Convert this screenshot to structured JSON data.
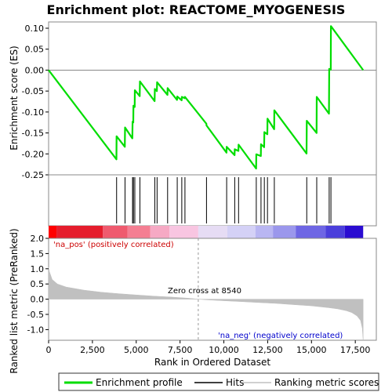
{
  "chart_data": {
    "type": "line",
    "title": "Enrichment plot: REACTOME_MYOGENESIS",
    "es_panel": {
      "ylabel": "Enrichment score (ES)",
      "ylim": [
        -0.25,
        0.115
      ],
      "yticks": [
        0.1,
        0.05,
        0.0,
        -0.05,
        -0.1,
        -0.15,
        -0.2,
        -0.25
      ],
      "ytick_labels": [
        "0.10",
        "0.05",
        "0.00",
        "-0.05",
        "-0.10",
        "-0.15",
        "-0.20",
        "-0.25"
      ],
      "series": [
        {
          "name": "Enrichment profile",
          "color": "#00dd00",
          "x": [
            0,
            3870,
            3880,
            4350,
            4360,
            4780,
            4790,
            4830,
            4840,
            4910,
            4920,
            5200,
            5210,
            6050,
            6060,
            6180,
            6190,
            6780,
            6790,
            7330,
            7340,
            7590,
            7600,
            7770,
            7780,
            9000,
            9010,
            10150,
            10160,
            10610,
            10620,
            10830,
            10840,
            11840,
            11850,
            12110,
            12120,
            12300,
            12310,
            12480,
            12490,
            12870,
            12880,
            14720,
            14730,
            15290,
            15300,
            16000,
            16010,
            16100,
            16110,
            17950
          ],
          "y": [
            0.0,
            -0.213,
            -0.158,
            -0.183,
            -0.137,
            -0.163,
            -0.123,
            -0.125,
            -0.085,
            -0.088,
            -0.048,
            -0.062,
            -0.027,
            -0.074,
            -0.045,
            -0.05,
            -0.029,
            -0.059,
            -0.043,
            -0.071,
            -0.063,
            -0.072,
            -0.064,
            -0.067,
            -0.064,
            -0.128,
            -0.132,
            -0.197,
            -0.183,
            -0.203,
            -0.189,
            -0.193,
            -0.178,
            -0.235,
            -0.201,
            -0.205,
            -0.177,
            -0.184,
            -0.148,
            -0.153,
            -0.116,
            -0.141,
            -0.096,
            -0.199,
            -0.121,
            -0.15,
            -0.064,
            -0.104,
            0.003,
            0.001,
            0.105,
            0.0
          ]
        }
      ]
    },
    "hits": {
      "name": "Hits",
      "x": [
        3880,
        4360,
        4790,
        4840,
        4920,
        5210,
        6060,
        6190,
        6790,
        7340,
        7600,
        7780,
        9010,
        10160,
        10620,
        10840,
        11850,
        12120,
        12310,
        12490,
        12880,
        14730,
        15300,
        16010,
        16110
      ]
    },
    "rank_panel": {
      "ylabel": "Ranked list metric (PreRanked)",
      "ylim": [
        -1.35,
        2.0
      ],
      "yticks": [
        2.0,
        1.5,
        1.0,
        0.5,
        0.0,
        -0.5,
        -1.0
      ],
      "ytick_labels": [
        "2.0",
        "1.5",
        "1.0",
        "0.5",
        "0.0",
        "-0.5",
        "-1.0"
      ],
      "series": [
        {
          "name": "Ranking metric scores",
          "color": "#c0c0c0",
          "x": [
            0,
            50,
            200,
            500,
            1000,
            2000,
            3000,
            4000,
            5000,
            6000,
            7000,
            8000,
            8540,
            9000,
            10000,
            11000,
            12000,
            13000,
            14000,
            15000,
            16000,
            16500,
            17000,
            17300,
            17600,
            17800,
            17900,
            17950
          ],
          "y": [
            1.05,
            0.9,
            0.65,
            0.5,
            0.4,
            0.3,
            0.23,
            0.18,
            0.14,
            0.1,
            0.07,
            0.03,
            0.0,
            -0.02,
            -0.05,
            -0.08,
            -0.11,
            -0.14,
            -0.18,
            -0.22,
            -0.28,
            -0.32,
            -0.38,
            -0.44,
            -0.55,
            -0.7,
            -0.95,
            -1.35
          ]
        }
      ],
      "pos_label": "'na_pos' (positively correlated)",
      "neg_label": "'na_neg' (negatively correlated)",
      "zero_cross_label": "Zero cross at 8540",
      "zero_cross": 8540
    },
    "xaxis": {
      "xlabel": "Rank in Ordered Dataset",
      "xlim": [
        0,
        18700
      ],
      "xticks": [
        0,
        2500,
        5000,
        7500,
        10000,
        12500,
        15000,
        17500
      ],
      "xtick_labels": [
        "0",
        "2,500",
        "5,000",
        "7,500",
        "10,000",
        "12,500",
        "15,000",
        "17,500"
      ]
    },
    "colorbar": {
      "segments": [
        {
          "x0": 0,
          "x1": 450,
          "color": "#ff0000"
        },
        {
          "x0": 450,
          "x1": 3100,
          "color": "#e51d2d"
        },
        {
          "x0": 3100,
          "x1": 4500,
          "color": "#ef5a6e"
        },
        {
          "x0": 4500,
          "x1": 5800,
          "color": "#f47e92"
        },
        {
          "x0": 5800,
          "x1": 6900,
          "color": "#f6a9c4"
        },
        {
          "x0": 6900,
          "x1": 8540,
          "color": "#f8c5e1"
        },
        {
          "x0": 8540,
          "x1": 10200,
          "color": "#e6dcf4"
        },
        {
          "x0": 10200,
          "x1": 11800,
          "color": "#d4d1f6"
        },
        {
          "x0": 11800,
          "x1": 12800,
          "color": "#b9b6f2"
        },
        {
          "x0": 12800,
          "x1": 14100,
          "color": "#9b97ec"
        },
        {
          "x0": 14100,
          "x1": 15800,
          "color": "#6e66e4"
        },
        {
          "x0": 15800,
          "x1": 16900,
          "color": "#4b3fdb"
        },
        {
          "x0": 16900,
          "x1": 17950,
          "color": "#2a0cd1"
        }
      ]
    },
    "legend": {
      "position": "bottom",
      "items": [
        {
          "label": "Enrichment profile",
          "color": "#00dd00"
        },
        {
          "label": "Hits",
          "color": "#000000"
        },
        {
          "label": "Ranking metric scores",
          "color": "#c0c0c0"
        }
      ]
    },
    "colors": {
      "pos_label": "#cc0000",
      "neg_label": "#0000cc",
      "frame": "#888888"
    }
  }
}
